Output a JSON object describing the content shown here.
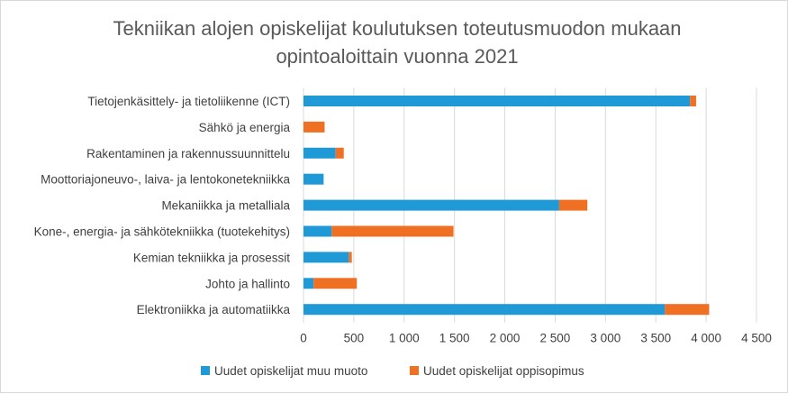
{
  "chart_data": {
    "type": "bar",
    "orientation": "horizontal",
    "stacked": true,
    "title_lines": [
      "Tekniikan alojen opiskelijat koulutuksen toteutusmuodon mukaan",
      "opintoaloittain vuonna 2021"
    ],
    "categories": [
      "Tietojenkäsittely- ja tietoliikenne (ICT)",
      "Sähkö ja energia",
      "Rakentaminen ja rakennussuunnittelu",
      "Moottoriajoneuvo-, laiva- ja lentokonetekniikka",
      "Mekaniikka ja metalliala",
      "Kone-, energia- ja sähkötekniikka (tuotekehitys)",
      "Kemian tekniikka ja prosessit",
      "Johto ja hallinto",
      "Elektroniikka ja automatiikka"
    ],
    "series": [
      {
        "name": "Uudet opiskelijat muu muoto",
        "color": "#1f9ad6",
        "values": [
          3840,
          0,
          320,
          200,
          2540,
          280,
          450,
          100,
          3590
        ]
      },
      {
        "name": "Uudet opiskelijat oppisopimus",
        "color": "#f07023",
        "values": [
          60,
          210,
          80,
          0,
          280,
          1210,
          30,
          430,
          440
        ]
      }
    ],
    "xlim": [
      0,
      4500
    ],
    "xticks": [
      0,
      500,
      1000,
      1500,
      2000,
      2500,
      3000,
      3500,
      4000,
      4500
    ],
    "xtick_labels": [
      "0",
      "500",
      "1 000",
      "1 500",
      "2 000",
      "2 500",
      "3 000",
      "3 500",
      "4 000",
      "4 500"
    ],
    "grid": true,
    "legend_position": "bottom"
  }
}
